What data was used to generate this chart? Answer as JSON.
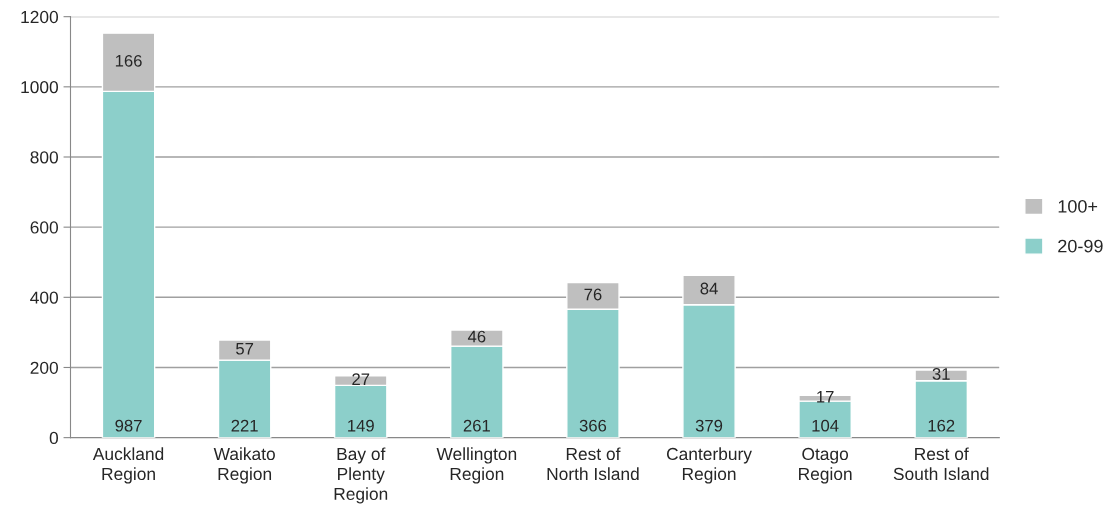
{
  "chart_data": {
    "type": "bar",
    "stacked": true,
    "categories": [
      "Auckland\nRegion",
      "Waikato\nRegion",
      "Bay of\nPlenty\nRegion",
      "Wellington\nRegion",
      "Rest of\nNorth Island",
      "Canterbury\nRegion",
      "Otago\nRegion",
      "Rest of\nSouth Island"
    ],
    "series": [
      {
        "name": "20-99",
        "color": "#8ccfca",
        "values": [
          987,
          221,
          149,
          261,
          366,
          379,
          104,
          162
        ]
      },
      {
        "name": "100+",
        "color": "#bfbfbf",
        "values": [
          166,
          57,
          27,
          46,
          76,
          84,
          17,
          31
        ]
      }
    ],
    "ylim": [
      0,
      1200
    ],
    "yticks": [
      0,
      200,
      400,
      600,
      800,
      1000,
      1200
    ],
    "grid": "y",
    "legend": "right",
    "data_labels": true
  }
}
